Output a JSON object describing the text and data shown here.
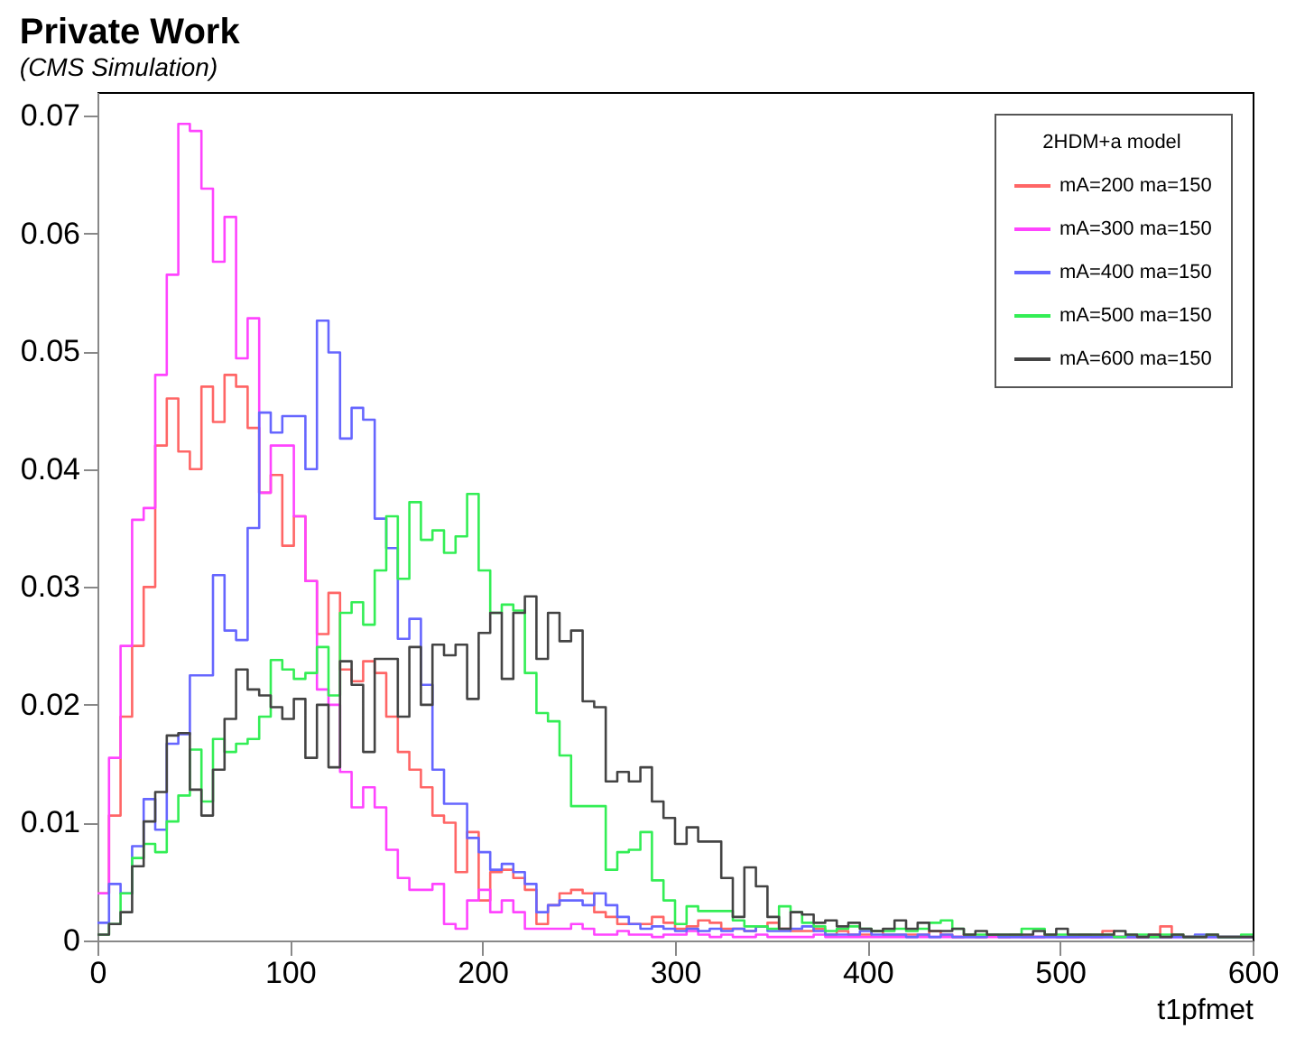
{
  "chart_data": {
    "type": "histogram",
    "title": "Private Work",
    "subtitle": "(CMS Simulation)",
    "xlabel": "t1pfmet",
    "legend_title": "2HDM+a model",
    "legend": "top right",
    "grid": false,
    "xlim": [
      0,
      600
    ],
    "xticks": [
      0,
      100,
      200,
      300,
      400,
      500,
      600
    ],
    "ylim": [
      0,
      0.072
    ],
    "yticks": [
      0,
      0.01,
      0.02,
      0.03,
      0.04,
      0.05,
      0.06,
      0.07
    ],
    "bins": [
      0,
      6,
      12,
      18,
      24,
      30,
      36,
      42,
      48,
      54,
      60,
      66,
      72,
      78,
      84,
      90,
      96,
      102,
      108,
      114,
      120,
      126,
      132,
      138,
      144,
      150,
      156,
      162,
      168,
      174,
      180,
      186,
      192,
      198,
      204,
      210,
      216,
      222,
      228,
      234,
      240,
      246,
      252,
      258,
      264,
      270,
      276,
      282,
      288,
      294,
      300,
      306,
      312,
      318,
      324,
      330,
      336,
      342,
      348,
      354,
      360,
      366,
      372,
      378,
      384,
      390,
      396,
      402,
      408,
      414,
      420,
      426,
      432,
      438,
      444,
      450,
      456,
      462,
      468,
      474,
      480,
      486,
      492,
      498,
      504,
      510,
      516,
      522,
      528,
      534,
      540,
      546,
      552,
      558,
      564,
      570,
      576,
      582,
      588,
      594,
      600
    ],
    "series": [
      {
        "name": "mA=200 ma=150",
        "color": "#ff6666",
        "values": [
          0.004,
          0.0106,
          0.019,
          0.025,
          0.03,
          0.042,
          0.046,
          0.0415,
          0.04,
          0.047,
          0.044,
          0.048,
          0.047,
          0.0435,
          0.038,
          0.0395,
          0.0335,
          0.036,
          0.0305,
          0.026,
          0.0295,
          0.023,
          0.022,
          0.0237,
          0.0227,
          0.019,
          0.016,
          0.0145,
          0.013,
          0.0106,
          0.01,
          0.0058,
          0.0092,
          0.0034,
          0.0058,
          0.006,
          0.0053,
          0.0043,
          0.0014,
          0.003,
          0.004,
          0.0043,
          0.004,
          0.0024,
          0.002,
          0.0014,
          0.0014,
          0.0014,
          0.002,
          0.0015,
          0.001,
          0.0012,
          0.0017,
          0.0015,
          0.001,
          0.001,
          0.0008,
          0.0012,
          0.0015,
          0.001,
          0.0008,
          0.0008,
          0.001,
          0.0005,
          0.0008,
          0.0005,
          0.0005,
          0.0008,
          0.0005,
          0.0005,
          0.0005,
          0.0005,
          0.0008,
          0.0005,
          0.0003,
          0.0005,
          0.0003,
          0.0005,
          0.0003,
          0.0005,
          0.0003,
          0.0003,
          0.0005,
          0.0003,
          0.0003,
          0.0005,
          0.0003,
          0.0008,
          0.0003,
          0.0003,
          0.0003,
          0.0005,
          0.0012,
          0.0005,
          0.0003,
          0.0003,
          0.0005,
          0.0003,
          0.0003,
          0.0003
        ]
      },
      {
        "name": "mA=300 ma=150",
        "color": "#ff44ff",
        "values": [
          0.004,
          0.0155,
          0.025,
          0.0357,
          0.0367,
          0.048,
          0.0565,
          0.0693,
          0.0687,
          0.0638,
          0.0576,
          0.0614,
          0.0494,
          0.0528,
          0.038,
          0.042,
          0.042,
          0.036,
          0.0305,
          0.0213,
          0.02,
          0.0143,
          0.0113,
          0.013,
          0.0113,
          0.0077,
          0.0053,
          0.0043,
          0.0043,
          0.0048,
          0.0014,
          0.001,
          0.0034,
          0.0043,
          0.0024,
          0.0034,
          0.0024,
          0.001,
          0.001,
          0.001,
          0.001,
          0.0014,
          0.001,
          0.0005,
          0.0005,
          0.0008,
          0.0005,
          0.0005,
          0.0003,
          0.0005,
          0.0005,
          0.0008,
          0.0005,
          0.0003,
          0.0005,
          0.0003,
          0.0003,
          0.0005,
          0.0003,
          0.0003,
          0.0003,
          0.0003,
          0.0005,
          0.0003,
          0.0003,
          0.0003,
          0.0003,
          0.0003,
          0.0003,
          0.0003,
          0.0003,
          0.0003,
          0.0003,
          0.0003,
          0.0003,
          0.0003,
          0.0003,
          0.0003,
          0.0003,
          0.0003,
          0.0003,
          0.0003,
          0.0003,
          0.0003,
          0.0003,
          0.0003,
          0.0003,
          0.0003,
          0.0003,
          0.0003,
          0.0003,
          0.0003,
          0.0003,
          0.0003,
          0.0003,
          0.0003,
          0.0003,
          0.0003,
          0.0003,
          0.0003
        ]
      },
      {
        "name": "mA=400 ma=150",
        "color": "#6666ff",
        "values": [
          0.0015,
          0.0048,
          0.004,
          0.008,
          0.012,
          0.0094,
          0.0167,
          0.0175,
          0.0225,
          0.0225,
          0.031,
          0.0263,
          0.0255,
          0.035,
          0.0448,
          0.0431,
          0.0445,
          0.0445,
          0.04,
          0.0526,
          0.0499,
          0.0426,
          0.0452,
          0.0442,
          0.0358,
          0.0333,
          0.0256,
          0.0273,
          0.0217,
          0.0145,
          0.0116,
          0.0116,
          0.0087,
          0.0075,
          0.006,
          0.0065,
          0.0058,
          0.0048,
          0.0024,
          0.003,
          0.0034,
          0.0034,
          0.003,
          0.004,
          0.003,
          0.002,
          0.0014,
          0.001,
          0.0012,
          0.001,
          0.0008,
          0.001,
          0.0008,
          0.001,
          0.0008,
          0.001,
          0.0008,
          0.0012,
          0.0008,
          0.0008,
          0.001,
          0.0012,
          0.0008,
          0.0005,
          0.0005,
          0.0005,
          0.0008,
          0.0005,
          0.0005,
          0.0005,
          0.0003,
          0.0005,
          0.0003,
          0.0005,
          0.0003,
          0.0003,
          0.0003,
          0.0005,
          0.0003,
          0.0003,
          0.0003,
          0.0003,
          0.0003,
          0.0003,
          0.0003,
          0.0003,
          0.0003,
          0.0003,
          0.0003,
          0.0003,
          0.0003,
          0.0003,
          0.0003,
          0.0003,
          0.0003,
          0.0005,
          0.0003,
          0.0003,
          0.0003,
          0.0003
        ]
      },
      {
        "name": "mA=500 ma=150",
        "color": "#33ee55",
        "values": [
          0.0005,
          0.0014,
          0.004,
          0.007,
          0.0082,
          0.0075,
          0.0101,
          0.0123,
          0.0162,
          0.0118,
          0.0171,
          0.016,
          0.0167,
          0.0171,
          0.019,
          0.0238,
          0.023,
          0.0222,
          0.0227,
          0.0249,
          0.0208,
          0.0278,
          0.0287,
          0.0268,
          0.0314,
          0.036,
          0.0307,
          0.0372,
          0.034,
          0.0348,
          0.0329,
          0.0343,
          0.0379,
          0.0314,
          0.0278,
          0.0285,
          0.028,
          0.0227,
          0.0193,
          0.0186,
          0.0157,
          0.0114,
          0.0114,
          0.0114,
          0.006,
          0.0075,
          0.0077,
          0.0092,
          0.0051,
          0.0034,
          0.0014,
          0.0029,
          0.0025,
          0.0025,
          0.0025,
          0.0017,
          0.0012,
          0.0012,
          0.001,
          0.0029,
          0.0024,
          0.0015,
          0.0012,
          0.0008,
          0.001,
          0.0012,
          0.001,
          0.0008,
          0.0008,
          0.001,
          0.0008,
          0.001,
          0.0015,
          0.0017,
          0.001,
          0.0005,
          0.0005,
          0.0005,
          0.0005,
          0.0005,
          0.001,
          0.001,
          0.0005,
          0.0005,
          0.0005,
          0.0005,
          0.0005,
          0.0005,
          0.0003,
          0.0005,
          0.0005,
          0.0003,
          0.0005,
          0.0005,
          0.0003,
          0.0003,
          0.0005,
          0.0003,
          0.0003,
          0.0005
        ]
      },
      {
        "name": "mA=600 ma=150",
        "color": "#444444",
        "values": [
          0.0005,
          0.0014,
          0.0024,
          0.0063,
          0.0101,
          0.0126,
          0.0174,
          0.0176,
          0.0128,
          0.0106,
          0.0145,
          0.0188,
          0.023,
          0.0213,
          0.0208,
          0.0198,
          0.0188,
          0.0205,
          0.0155,
          0.02,
          0.0147,
          0.0237,
          0.0217,
          0.016,
          0.0239,
          0.0239,
          0.019,
          0.0249,
          0.02,
          0.0251,
          0.0242,
          0.0251,
          0.0205,
          0.0261,
          0.0278,
          0.0222,
          0.0278,
          0.0292,
          0.0239,
          0.0278,
          0.0254,
          0.0263,
          0.0203,
          0.0198,
          0.0135,
          0.0143,
          0.0135,
          0.0147,
          0.0118,
          0.0104,
          0.0082,
          0.0096,
          0.0084,
          0.0084,
          0.0053,
          0.002,
          0.0062,
          0.0046,
          0.002,
          0.001,
          0.0024,
          0.0022,
          0.0015,
          0.0017,
          0.0012,
          0.0015,
          0.001,
          0.0008,
          0.001,
          0.0017,
          0.001,
          0.0015,
          0.0008,
          0.0008,
          0.001,
          0.0005,
          0.0008,
          0.0005,
          0.0005,
          0.0005,
          0.0005,
          0.0008,
          0.0005,
          0.001,
          0.0005,
          0.0005,
          0.0005,
          0.0005,
          0.0008,
          0.0005,
          0.0003,
          0.0005,
          0.0003,
          0.0005,
          0.0003,
          0.0003,
          0.0005,
          0.0003,
          0.0003,
          0.0003
        ]
      }
    ]
  }
}
